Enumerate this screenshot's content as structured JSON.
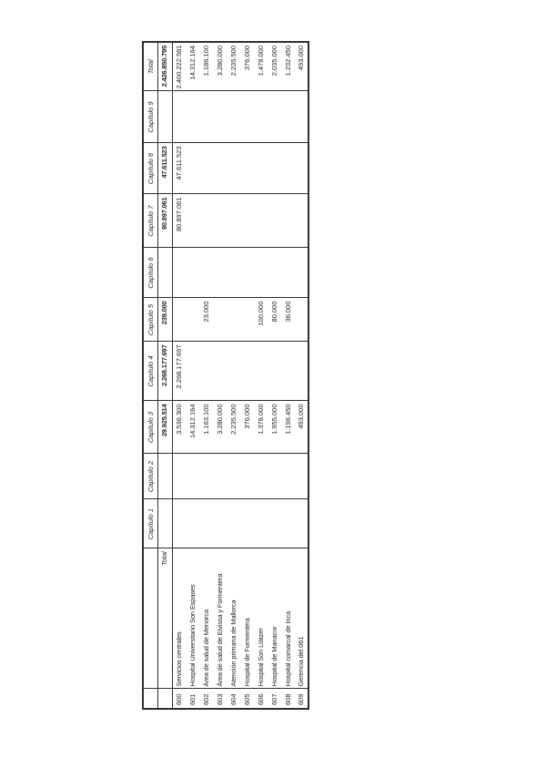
{
  "page": {
    "background_color": "#ffffff",
    "border_color": "#2e2e2e",
    "text_color": "#1f1f1f"
  },
  "table": {
    "column_headers": [
      "Capítulo 1",
      "Capítulo 2",
      "Capítulo 3",
      "Capítulo 4",
      "Capítulo 5",
      "Capítulo 6",
      "Capítulo 7",
      "Capítulo 8",
      "Capítulo 9",
      "Total"
    ],
    "totals_row": {
      "code": "",
      "label": "Total",
      "values": [
        "",
        "",
        "29.925.514",
        "2.268.177.697",
        "239.000",
        "",
        "80.897.061",
        "47.611.523",
        "",
        "2.426.850.795"
      ]
    },
    "rows": [
      {
        "code": "600",
        "name": "Servicios centrales",
        "values": [
          "",
          "",
          "3.536.300",
          "2.268.177.697",
          "",
          "",
          "80.897.061",
          "47.611.523",
          "",
          "2.400.222.581"
        ]
      },
      {
        "code": "601",
        "name": "Hospital Universitario Son Espases",
        "values": [
          "",
          "",
          "14.312.164",
          "",
          "",
          "",
          "",
          "",
          "",
          "14.312.164"
        ]
      },
      {
        "code": "602",
        "name": "Área de salud de Menorca",
        "values": [
          "",
          "",
          "1.163.100",
          "",
          "23.000",
          "",
          "",
          "",
          "",
          "1.186.100"
        ]
      },
      {
        "code": "603",
        "name": "Área de salud de Eivissa y Formentera",
        "values": [
          "",
          "",
          "3.280.000",
          "",
          "",
          "",
          "",
          "",
          "",
          "3.280.000"
        ]
      },
      {
        "code": "604",
        "name": "Atención primaria de Mallorca",
        "values": [
          "",
          "",
          "2.235.500",
          "",
          "",
          "",
          "",
          "",
          "",
          "2.235.500"
        ]
      },
      {
        "code": "605",
        "name": "Hospital de Formentera",
        "values": [
          "",
          "",
          "376.000",
          "",
          "",
          "",
          "",
          "",
          "",
          "376.000"
        ]
      },
      {
        "code": "606",
        "name": "Hospital Son Llàtzer",
        "values": [
          "",
          "",
          "1.378.000",
          "",
          "100.000",
          "",
          "",
          "",
          "",
          "1.478.000"
        ]
      },
      {
        "code": "607",
        "name": "Hospital de Manacor",
        "values": [
          "",
          "",
          "1.955.000",
          "",
          "80.000",
          "",
          "",
          "",
          "",
          "2.035.000"
        ]
      },
      {
        "code": "608",
        "name": "Hospital comarcal de Inca",
        "values": [
          "",
          "",
          "1.196.450",
          "",
          "36.000",
          "",
          "",
          "",
          "",
          "1.232.450"
        ]
      },
      {
        "code": "609",
        "name": "Gerencia del 061",
        "values": [
          "",
          "",
          "493.000",
          "",
          "",
          "",
          "",
          "",
          "",
          "493.000"
        ]
      }
    ]
  }
}
